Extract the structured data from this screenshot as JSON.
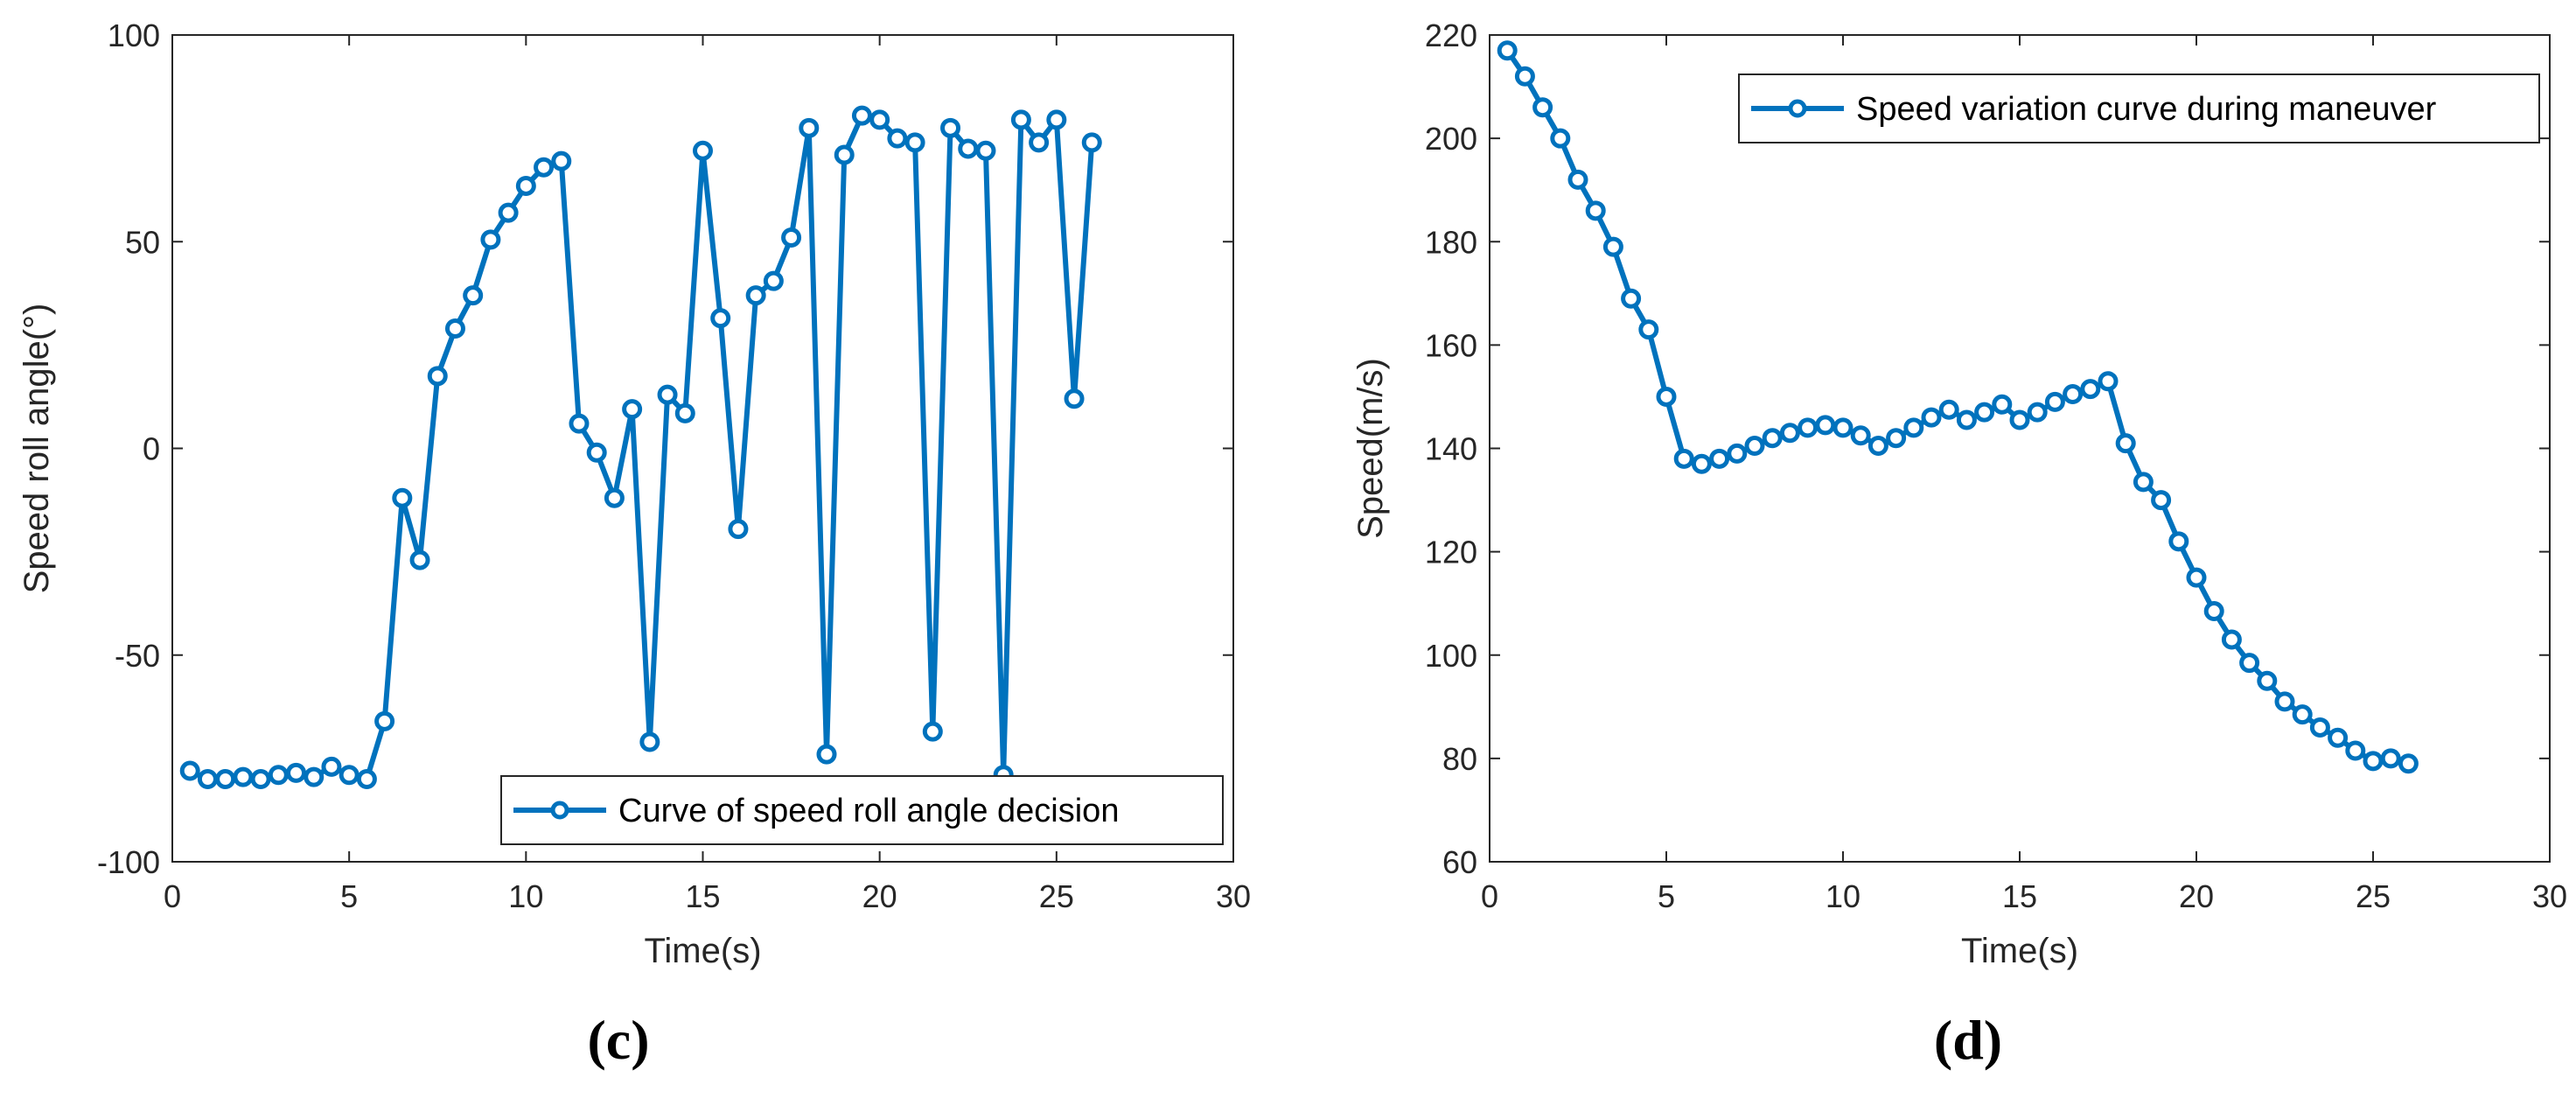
{
  "colors": {
    "series": "#0072BD",
    "axis": "#262626",
    "background": "#ffffff"
  },
  "chart_data": [
    {
      "id": "c",
      "type": "line",
      "panel_label": "(c)",
      "xlabel": "Time(s)",
      "ylabel": "Speed roll angle(°)",
      "xlim": [
        0,
        30
      ],
      "ylim": [
        -100,
        100
      ],
      "xticks": [
        0,
        5,
        10,
        15,
        20,
        25,
        30
      ],
      "yticks": [
        -100,
        -50,
        0,
        50,
        100
      ],
      "xtick_labels": [
        "0",
        "5",
        "10",
        "15",
        "20",
        "25",
        "30"
      ],
      "ytick_labels": [
        "-100",
        "-50",
        "0",
        "50",
        "100"
      ],
      "legend_position": "bottom-right",
      "grid": false,
      "series": [
        {
          "name": "Curve of speed roll angle decision",
          "marker": "circle",
          "x": [
            0.5,
            1,
            1.5,
            2,
            2.5,
            3,
            3.5,
            4,
            4.5,
            5,
            5.5,
            6,
            6.5,
            7,
            7.5,
            8,
            8.5,
            9,
            9.5,
            10,
            10.5,
            11,
            11.5,
            12,
            12.5,
            13,
            13.5,
            14,
            14.5,
            15,
            15.5,
            16,
            16.5,
            17,
            17.5,
            18,
            18.5,
            19,
            19.5,
            20,
            20.5,
            21,
            21.5,
            22,
            22.5,
            23,
            23.5,
            24,
            24.5,
            25,
            25.5,
            26
          ],
          "y": [
            -78,
            -80,
            -80,
            -79.5,
            -80,
            -79,
            -78.5,
            -79.5,
            -77,
            -79,
            -80,
            -66,
            -12,
            -27,
            17.5,
            29,
            37,
            50.5,
            57,
            63.5,
            68,
            69.5,
            6,
            -1,
            -12,
            9.5,
            -71,
            13,
            8.5,
            72,
            31.5,
            -19.5,
            37,
            40.5,
            51,
            77.5,
            -74,
            71,
            80.5,
            79.5,
            75,
            74,
            -68.5,
            77.5,
            72.5,
            72,
            -79,
            79.5,
            74,
            79.5,
            12,
            74
          ]
        }
      ]
    },
    {
      "id": "d",
      "type": "line",
      "panel_label": "(d)",
      "xlabel": "Time(s)",
      "ylabel": "Speed(m/s)",
      "xlim": [
        0,
        30
      ],
      "ylim": [
        60,
        220
      ],
      "xticks": [
        0,
        5,
        10,
        15,
        20,
        25,
        30
      ],
      "yticks": [
        60,
        80,
        100,
        120,
        140,
        160,
        180,
        200,
        220
      ],
      "xtick_labels": [
        "0",
        "5",
        "10",
        "15",
        "20",
        "25",
        "30"
      ],
      "ytick_labels": [
        "60",
        "80",
        "100",
        "120",
        "140",
        "160",
        "180",
        "200",
        "220"
      ],
      "legend_position": "top-right",
      "grid": false,
      "series": [
        {
          "name": "Speed variation curve during maneuver",
          "marker": "circle",
          "x": [
            0.5,
            1,
            1.5,
            2,
            2.5,
            3,
            3.5,
            4,
            4.5,
            5,
            5.5,
            6,
            6.5,
            7,
            7.5,
            8,
            8.5,
            9,
            9.5,
            10,
            10.5,
            11,
            11.5,
            12,
            12.5,
            13,
            13.5,
            14,
            14.5,
            15,
            15.5,
            16,
            16.5,
            17,
            17.5,
            18,
            18.5,
            19,
            19.5,
            20,
            20.5,
            21,
            21.5,
            22,
            22.5,
            23,
            23.5,
            24,
            24.5,
            25,
            25.5,
            26
          ],
          "y": [
            217,
            212,
            206,
            200,
            192,
            186,
            179,
            169,
            163,
            150,
            138,
            137,
            138,
            139,
            140.5,
            142,
            143,
            144,
            144.5,
            144,
            142.5,
            140.5,
            142,
            144,
            146,
            147.5,
            145.5,
            147,
            148.5,
            145.5,
            147,
            149,
            150.5,
            151.5,
            153,
            141,
            133.5,
            130,
            122,
            115,
            108.5,
            103,
            98.5,
            95,
            91,
            88.5,
            86,
            84,
            81.5,
            79.5,
            80,
            79
          ]
        }
      ]
    }
  ]
}
